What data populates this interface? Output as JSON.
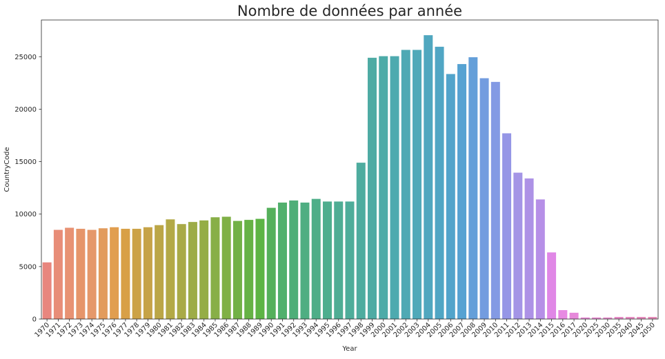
{
  "chart_data": {
    "type": "bar",
    "title": "Nombre de données par année",
    "xlabel": "Year",
    "ylabel": "CountryCode",
    "ylim": [
      0,
      28500
    ],
    "yticks": [
      0,
      5000,
      10000,
      15000,
      20000,
      25000
    ],
    "yticklabels": [
      "0",
      "5000",
      "10000",
      "15000",
      "20000",
      "25000"
    ],
    "grid": false,
    "legend": "none",
    "categories": [
      "1970",
      "1971",
      "1972",
      "1973",
      "1974",
      "1975",
      "1976",
      "1977",
      "1978",
      "1979",
      "1980",
      "1981",
      "1982",
      "1983",
      "1984",
      "1985",
      "1986",
      "1987",
      "1988",
      "1989",
      "1990",
      "1991",
      "1992",
      "1993",
      "1994",
      "1995",
      "1996",
      "1997",
      "1998",
      "1999",
      "2000",
      "2001",
      "2002",
      "2003",
      "2004",
      "2005",
      "2006",
      "2007",
      "2008",
      "2009",
      "2010",
      "2011",
      "2012",
      "2013",
      "2014",
      "2015",
      "2016",
      "2017",
      "2020",
      "2025",
      "2030",
      "2035",
      "2040",
      "2045",
      "2050"
    ],
    "values": [
      5400,
      8500,
      8700,
      8600,
      8500,
      8650,
      8750,
      8600,
      8600,
      8750,
      8950,
      9500,
      9050,
      9250,
      9400,
      9700,
      9750,
      9350,
      9450,
      9550,
      10600,
      11100,
      11300,
      11100,
      11450,
      11200,
      11200,
      11200,
      14900,
      24900,
      25050,
      25050,
      25650,
      25650,
      27050,
      25950,
      23350,
      24300,
      24950,
      22950,
      22600,
      17700,
      13950,
      13400,
      11400,
      6350,
      850,
      600,
      150,
      150,
      150,
      200,
      200,
      200,
      200
    ],
    "colors": [
      "#e8867e",
      "#e88d78",
      "#e89273",
      "#e6956a",
      "#e5986a",
      "#e29b5c",
      "#e19e4f",
      "#d8a046",
      "#cca246",
      "#c6a347",
      "#bba646",
      "#b3a946",
      "#a9aa47",
      "#9dac47",
      "#95ad46",
      "#88af47",
      "#80b046",
      "#72b147",
      "#66b246",
      "#5db445",
      "#55b05b",
      "#51b06d",
      "#4eae78",
      "#4fae82",
      "#4eae88",
      "#4eae8e",
      "#4fad94",
      "#4ead9a",
      "#4eac9f",
      "#4eaba4",
      "#4caba8",
      "#4eaaaf",
      "#4fa9b4",
      "#50a9b9",
      "#50a7bf",
      "#50a6c4",
      "#52a4cb",
      "#56a2d2",
      "#649fd9",
      "#739cdf",
      "#839ae4",
      "#9596e6",
      "#a495e6",
      "#ad92e6",
      "#b68fe7",
      "#e087e6",
      "#e78ae2",
      "#e689da",
      "#e689d5",
      "#e689cf",
      "#e58acb",
      "#e689c6",
      "#e68ac1",
      "#e58abc",
      "#e58bb8"
    ]
  }
}
